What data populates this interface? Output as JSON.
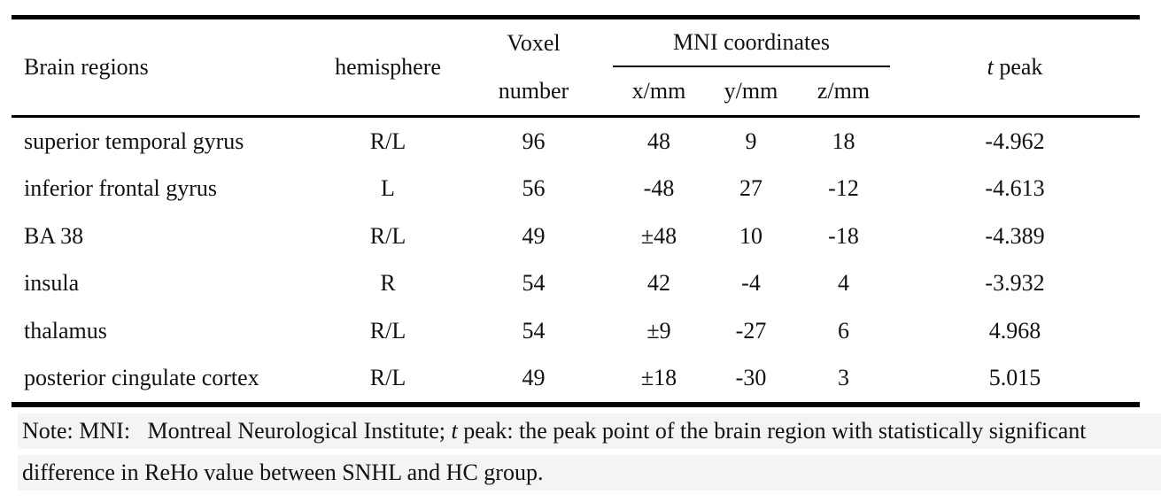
{
  "table": {
    "headers": {
      "brain_regions": "Brain regions",
      "hemisphere": "hemisphere",
      "voxel_line1": "Voxel",
      "voxel_line2": "number",
      "mni_group": "MNI coordinates",
      "x": "x/mm",
      "y": "y/mm",
      "z": "z/mm",
      "t_peak_italic": "t",
      "t_peak_rest": " peak"
    },
    "rows": [
      {
        "region": "superior temporal gyrus",
        "hemisphere": "R/L",
        "voxels": "96",
        "x": "48",
        "y": "9",
        "z": "18",
        "t": "-4.962"
      },
      {
        "region": "inferior frontal gyrus",
        "hemisphere": "L",
        "voxels": "56",
        "x": "-48",
        "y": "27",
        "z": "-12",
        "t": "-4.613"
      },
      {
        "region": "BA 38",
        "hemisphere": "R/L",
        "voxels": "49",
        "x": "±48",
        "y": "10",
        "z": "-18",
        "t": "-4.389"
      },
      {
        "region": "insula",
        "hemisphere": "R",
        "voxels": "54",
        "x": "42",
        "y": "-4",
        "z": "4",
        "t": "-3.932"
      },
      {
        "region": "thalamus",
        "hemisphere": "R/L",
        "voxels": "54",
        "x": "±9",
        "y": "-27",
        "z": "6",
        "t": "4.968"
      },
      {
        "region": "posterior cingulate cortex",
        "hemisphere": "R/L",
        "voxels": "49",
        "x": "±18",
        "y": "-30",
        "z": "3",
        "t": "5.015"
      }
    ]
  },
  "note": {
    "line1_pre": "Note: MNI:   Montreal Neurological Institute; ",
    "line1_t": "t",
    "line1_post": " peak: the peak point of the brain region with statistically significant",
    "line2": "difference in ReHo value between SNHL and HC group."
  },
  "colors": {
    "rule": "#000000",
    "note_background": "#f4f4f6",
    "text": "#111111"
  }
}
